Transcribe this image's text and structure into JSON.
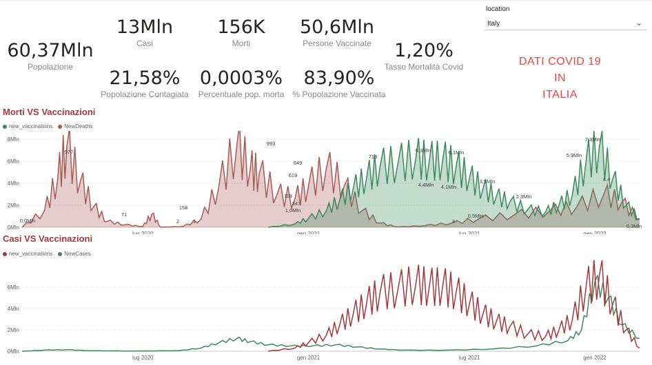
{
  "kpis": {
    "popolazione": {
      "value": "60,37Mln",
      "label": "Popolazione"
    },
    "casi": {
      "value": "13Mln",
      "label": "Casi"
    },
    "morti": {
      "value": "156K",
      "label": "Morti"
    },
    "vaccinati": {
      "value": "50,6Mln",
      "label": "Persone Vaccinate"
    },
    "mortalita": {
      "value": "1,20%",
      "label": "Tasso Mortalità Covid"
    },
    "contagiata": {
      "value": "21,58%",
      "label": "Popolazione Contagiata"
    },
    "pop_morta": {
      "value": "0,0003%",
      "label": "Percentuale pop. morta"
    },
    "pop_vaccinata": {
      "value": "83,90%",
      "label": "% Popolazione Vaccinata"
    }
  },
  "slicer": {
    "title": "location",
    "value": "Italy",
    "icon": "chevron-down-icon"
  },
  "banner": {
    "line1": "DATI COVID 19",
    "line2": "IN",
    "line3": "ITALIA"
  },
  "colors": {
    "green": "#3a8a5c",
    "red_brown": "#a85a55",
    "dark_red": "#a4373a"
  },
  "chart_data": [
    {
      "type": "area",
      "title": "Morti VS Vaccinazioni",
      "legend": [
        "new_vaccinations",
        "NewDeaths"
      ],
      "legend_position": "top-left",
      "y_ticks": [
        "0Mln",
        "2Mln",
        "4Mln",
        "6Mln",
        "8Mln"
      ],
      "ylim": [
        0,
        8
      ],
      "x_ticks": [
        "lug 2020",
        "gen 2021",
        "lug 2021",
        "gen 2022"
      ],
      "series": [
        {
          "name": "new_vaccinations",
          "unit": "Mln",
          "points": [
            [
              0.55,
              0
            ],
            [
              0.61,
              0.3
            ],
            [
              0.64,
              0.8
            ],
            [
              0.68,
              1.5
            ],
            [
              0.71,
              2.5
            ],
            [
              0.74,
              3.5
            ],
            [
              0.77,
              4.5
            ],
            [
              0.8,
              5.5
            ],
            [
              0.84,
              5.8
            ],
            [
              0.88,
              6.3
            ],
            [
              0.91,
              6.0
            ],
            [
              0.94,
              6.1
            ],
            [
              0.97,
              5.5
            ],
            [
              1.0,
              4.5
            ],
            [
              1.03,
              3.5
            ],
            [
              1.06,
              2.8
            ],
            [
              1.09,
              2.3
            ],
            [
              1.13,
              1.6
            ],
            [
              1.17,
              1.4
            ],
            [
              1.2,
              2.0
            ],
            [
              1.23,
              3.0
            ],
            [
              1.26,
              5.9
            ],
            [
              1.29,
              7.3
            ],
            [
              1.32,
              4.4
            ],
            [
              1.35,
              2.0
            ],
            [
              1.38,
              0.8
            ]
          ]
        },
        {
          "name": "NewDeaths",
          "unit": "count",
          "points": [
            [
              0.0,
              0
            ],
            [
              0.05,
              200
            ],
            [
              0.08,
              600
            ],
            [
              0.1,
              977
            ],
            [
              0.13,
              550
            ],
            [
              0.16,
              250
            ],
            [
              0.19,
              71
            ],
            [
              0.23,
              30
            ],
            [
              0.27,
              10
            ],
            [
              0.29,
              158
            ],
            [
              0.31,
              1
            ],
            [
              0.36,
              10
            ],
            [
              0.4,
              100
            ],
            [
              0.44,
              500
            ],
            [
              0.48,
              993
            ],
            [
              0.51,
              700
            ],
            [
              0.53,
              649
            ],
            [
              0.57,
              400
            ],
            [
              0.61,
              347
            ],
            [
              0.64,
              500
            ],
            [
              0.68,
              718
            ],
            [
              0.72,
              500
            ],
            [
              0.76,
              200
            ],
            [
              0.8,
              50
            ],
            [
              0.84,
              3
            ],
            [
              0.9,
              20
            ],
            [
              0.96,
              50
            ],
            [
              1.02,
              100
            ],
            [
              1.1,
              150
            ],
            [
              1.18,
              200
            ],
            [
              1.24,
              250
            ],
            [
              1.3,
              400
            ],
            [
              1.34,
              300
            ],
            [
              1.38,
              100
            ]
          ]
        }
      ],
      "annotations": [
        "0,0Mln",
        "977",
        "71",
        "2",
        "158",
        "1",
        "993",
        "649",
        "1,0Mln",
        "118",
        "619",
        "347",
        "718",
        "6,3Mln",
        "6,1Mln",
        "4,4Mln",
        "4,1Mln",
        "3,5Mln",
        "2,3Mln",
        "0,5Mln",
        "3",
        "5,9Mln",
        "7,3Mln",
        "4,4",
        "0,3Mln"
      ]
    },
    {
      "type": "line",
      "title": "Casi VS Vaccinazioni",
      "legend": [
        "new_vaccinations",
        "NewCases"
      ],
      "legend_position": "top-left",
      "y_ticks": [
        "0Mln",
        "2Mln",
        "4Mln",
        "6Mln"
      ],
      "ylim": [
        0,
        8
      ],
      "x_ticks": [
        "lug 2020",
        "gen 2021",
        "lug 2021",
        "gen 2022"
      ],
      "series": [
        {
          "name": "new_vaccinations",
          "points": [
            [
              0.55,
              0
            ],
            [
              0.61,
              0.3
            ],
            [
              0.64,
              0.8
            ],
            [
              0.68,
              1.5
            ],
            [
              0.71,
              2.5
            ],
            [
              0.74,
              3.5
            ],
            [
              0.77,
              4.5
            ],
            [
              0.8,
              5.5
            ],
            [
              0.84,
              5.8
            ],
            [
              0.88,
              6.3
            ],
            [
              0.91,
              6.0
            ],
            [
              0.94,
              6.1
            ],
            [
              0.97,
              5.5
            ],
            [
              1.0,
              4.5
            ],
            [
              1.03,
              3.5
            ],
            [
              1.06,
              2.8
            ],
            [
              1.09,
              2.3
            ],
            [
              1.13,
              1.6
            ],
            [
              1.17,
              1.4
            ],
            [
              1.2,
              2.0
            ],
            [
              1.23,
              3.0
            ],
            [
              1.26,
              5.9
            ],
            [
              1.29,
              7.1
            ],
            [
              1.32,
              4.4
            ],
            [
              1.35,
              2.0
            ],
            [
              1.38,
              0.3
            ]
          ]
        },
        {
          "name": "NewCases",
          "points": [
            [
              0.0,
              0
            ],
            [
              0.05,
              0.1
            ],
            [
              0.1,
              0.15
            ],
            [
              0.15,
              0.05
            ],
            [
              0.25,
              0.02
            ],
            [
              0.35,
              0.05
            ],
            [
              0.4,
              0.3
            ],
            [
              0.44,
              0.8
            ],
            [
              0.48,
              1.2
            ],
            [
              0.51,
              0.9
            ],
            [
              0.55,
              0.6
            ],
            [
              0.6,
              0.5
            ],
            [
              0.65,
              0.5
            ],
            [
              0.7,
              0.6
            ],
            [
              0.75,
              0.4
            ],
            [
              0.8,
              0.2
            ],
            [
              0.85,
              0.1
            ],
            [
              0.95,
              0.1
            ],
            [
              1.05,
              0.2
            ],
            [
              1.15,
              0.5
            ],
            [
              1.22,
              1.0
            ],
            [
              1.25,
              2.0
            ],
            [
              1.28,
              6.5
            ],
            [
              1.31,
              5.0
            ],
            [
              1.34,
              2.5
            ],
            [
              1.38,
              1.2
            ]
          ]
        }
      ]
    }
  ]
}
